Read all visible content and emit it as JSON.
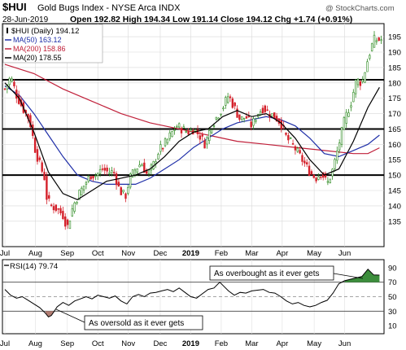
{
  "header": {
    "symbol": "$HUI",
    "name": "Gold Bugs Index - NYSE Arca  INDX",
    "watermark": "@ StockCharts.com",
    "date": "28-Jun-2019",
    "quote": "Open 192.82  High 194.34  Low 191.14  Close 194.12  Chg +1.74 (+0.91%)",
    "quote_color": "#000000",
    "change_color": "#2e8b22"
  },
  "legend": [
    {
      "label": "$HUI (Daily) 194.12",
      "color": "#000000",
      "icon": "candlestick-icon"
    },
    {
      "label": "MA(50) 163.12",
      "color": "#1f2fa8"
    },
    {
      "label": "MA(200) 158.86",
      "color": "#c0203a"
    },
    {
      "label": "MA(20) 178.55",
      "color": "#000000"
    }
  ],
  "rsi_legend": {
    "label": "RSI(14) 79.74",
    "color": "#000000"
  },
  "annotations": {
    "overbought": "As overbought as it ever gets",
    "oversold": "As oversold as it ever gets"
  },
  "colors": {
    "up": "#2e8b22",
    "down": "#d4202a",
    "ma50": "#1f2fa8",
    "ma200": "#c0203a",
    "ma20": "#000000",
    "rsi_fill_ob": "#3c8d3c",
    "rsi_fill_os": "#b27d73"
  },
  "chart_data": [
    {
      "type": "candlestick",
      "title": "$HUI Gold Bugs Index - NYSE Arca INDX",
      "ylim": [
        127,
        199
      ],
      "y_ticks": [
        135,
        140,
        145,
        150,
        155,
        160,
        165,
        170,
        175,
        180,
        185,
        190,
        195
      ],
      "x_tick_labels": [
        "Jul",
        "Aug",
        "Sep",
        "Oct",
        "Nov",
        "Dec",
        "2019",
        "Feb",
        "Mar",
        "Apr",
        "May",
        "Jun"
      ],
      "x_range": [
        0,
        260
      ],
      "x_tick_days": [
        0,
        21,
        43,
        64,
        85,
        107,
        128,
        149,
        170,
        191,
        213,
        234
      ],
      "horizontal_lines": [
        150,
        165,
        181
      ],
      "close_path": [
        [
          0,
          178
        ],
        [
          4,
          182
        ],
        [
          8,
          176
        ],
        [
          12,
          172
        ],
        [
          17,
          168
        ],
        [
          21,
          158
        ],
        [
          25,
          152
        ],
        [
          27,
          150
        ],
        [
          29,
          142
        ],
        [
          32,
          140
        ],
        [
          36,
          139
        ],
        [
          40,
          137
        ],
        [
          43,
          133
        ],
        [
          47,
          140
        ],
        [
          51,
          144
        ],
        [
          55,
          147
        ],
        [
          59,
          150
        ],
        [
          63,
          150
        ],
        [
          67,
          152
        ],
        [
          71,
          151
        ],
        [
          75,
          151
        ],
        [
          79,
          145
        ],
        [
          83,
          143
        ],
        [
          86,
          149
        ],
        [
          90,
          152
        ],
        [
          94,
          154
        ],
        [
          98,
          150
        ],
        [
          102,
          153
        ],
        [
          106,
          158
        ],
        [
          110,
          160
        ],
        [
          114,
          163
        ],
        [
          118,
          166
        ],
        [
          122,
          165
        ],
        [
          126,
          164
        ],
        [
          130,
          165
        ],
        [
          134,
          163
        ],
        [
          138,
          160
        ],
        [
          142,
          166
        ],
        [
          146,
          169
        ],
        [
          150,
          172
        ],
        [
          154,
          176
        ],
        [
          158,
          172
        ],
        [
          162,
          168
        ],
        [
          166,
          169
        ],
        [
          170,
          166
        ],
        [
          174,
          170
        ],
        [
          178,
          172
        ],
        [
          182,
          170
        ],
        [
          186,
          169
        ],
        [
          190,
          167
        ],
        [
          194,
          162
        ],
        [
          198,
          160
        ],
        [
          202,
          157
        ],
        [
          206,
          154
        ],
        [
          210,
          151
        ],
        [
          214,
          149
        ],
        [
          218,
          151
        ],
        [
          222,
          147
        ],
        [
          226,
          152
        ],
        [
          230,
          160
        ],
        [
          234,
          168
        ],
        [
          238,
          173
        ],
        [
          242,
          181
        ],
        [
          246,
          180
        ],
        [
          250,
          188
        ],
        [
          254,
          194
        ],
        [
          258,
          194
        ]
      ],
      "ma50_path": [
        [
          0,
          179
        ],
        [
          10,
          176
        ],
        [
          20,
          170
        ],
        [
          30,
          163
        ],
        [
          40,
          156
        ],
        [
          50,
          150
        ],
        [
          60,
          148
        ],
        [
          70,
          147
        ],
        [
          80,
          147
        ],
        [
          90,
          147
        ],
        [
          100,
          149
        ],
        [
          110,
          152
        ],
        [
          120,
          155
        ],
        [
          130,
          159
        ],
        [
          140,
          162
        ],
        [
          150,
          165
        ],
        [
          160,
          167
        ],
        [
          170,
          168
        ],
        [
          180,
          169
        ],
        [
          190,
          168
        ],
        [
          200,
          166
        ],
        [
          210,
          162
        ],
        [
          220,
          157
        ],
        [
          230,
          156
        ],
        [
          240,
          158
        ],
        [
          250,
          160
        ],
        [
          258,
          163
        ]
      ],
      "ma200_path": [
        [
          0,
          186
        ],
        [
          20,
          183
        ],
        [
          40,
          178
        ],
        [
          60,
          174
        ],
        [
          80,
          170
        ],
        [
          100,
          167
        ],
        [
          120,
          165
        ],
        [
          140,
          163
        ],
        [
          160,
          161
        ],
        [
          180,
          160
        ],
        [
          200,
          159
        ],
        [
          220,
          158
        ],
        [
          240,
          157
        ],
        [
          250,
          157
        ],
        [
          258,
          158.86
        ]
      ],
      "ma20_path": [
        [
          0,
          180
        ],
        [
          10,
          175
        ],
        [
          20,
          164
        ],
        [
          30,
          151
        ],
        [
          40,
          144
        ],
        [
          50,
          142
        ],
        [
          60,
          145
        ],
        [
          70,
          148
        ],
        [
          80,
          149
        ],
        [
          90,
          150
        ],
        [
          100,
          152
        ],
        [
          110,
          156
        ],
        [
          120,
          161
        ],
        [
          130,
          164
        ],
        [
          140,
          165
        ],
        [
          150,
          169
        ],
        [
          160,
          171
        ],
        [
          170,
          169
        ],
        [
          180,
          170
        ],
        [
          190,
          167
        ],
        [
          200,
          162
        ],
        [
          210,
          155
        ],
        [
          220,
          150
        ],
        [
          230,
          152
        ],
        [
          240,
          161
        ],
        [
          250,
          172
        ],
        [
          258,
          178.55
        ]
      ],
      "series": [
        {
          "name": "MA(50)",
          "last": 163.12
        },
        {
          "name": "MA(200)",
          "last": 158.86
        },
        {
          "name": "MA(20)",
          "last": 178.55
        }
      ]
    },
    {
      "type": "line",
      "title": "RSI(14)",
      "ylim": [
        0,
        100
      ],
      "y_ticks": [
        10,
        30,
        50,
        70,
        90
      ],
      "reference_lines": [
        30,
        50,
        70
      ],
      "x_tick_labels": [
        "Jul",
        "Aug",
        "Sep",
        "Oct",
        "Nov",
        "Dec",
        "2019",
        "Feb",
        "Mar",
        "Apr",
        "May",
        "Jun"
      ],
      "values": [
        [
          0,
          60
        ],
        [
          4,
          52
        ],
        [
          8,
          48
        ],
        [
          12,
          50
        ],
        [
          16,
          45
        ],
        [
          20,
          40
        ],
        [
          24,
          35
        ],
        [
          26,
          31
        ],
        [
          28,
          27
        ],
        [
          30,
          22
        ],
        [
          32,
          24
        ],
        [
          34,
          30
        ],
        [
          36,
          36
        ],
        [
          40,
          42
        ],
        [
          44,
          38
        ],
        [
          48,
          44
        ],
        [
          52,
          47
        ],
        [
          56,
          50
        ],
        [
          60,
          47
        ],
        [
          64,
          52
        ],
        [
          68,
          50
        ],
        [
          72,
          48
        ],
        [
          76,
          51
        ],
        [
          80,
          44
        ],
        [
          84,
          40
        ],
        [
          88,
          50
        ],
        [
          92,
          53
        ],
        [
          96,
          50
        ],
        [
          100,
          55
        ],
        [
          104,
          56
        ],
        [
          108,
          58
        ],
        [
          112,
          60
        ],
        [
          116,
          57
        ],
        [
          120,
          62
        ],
        [
          124,
          56
        ],
        [
          128,
          50
        ],
        [
          132,
          48
        ],
        [
          136,
          54
        ],
        [
          140,
          60
        ],
        [
          144,
          62
        ],
        [
          148,
          70
        ],
        [
          150,
          66
        ],
        [
          154,
          58
        ],
        [
          158,
          52
        ],
        [
          162,
          56
        ],
        [
          166,
          55
        ],
        [
          170,
          58
        ],
        [
          174,
          59
        ],
        [
          178,
          60
        ],
        [
          182,
          56
        ],
        [
          186,
          55
        ],
        [
          190,
          50
        ],
        [
          194,
          44
        ],
        [
          198,
          40
        ],
        [
          202,
          42
        ],
        [
          206,
          38
        ],
        [
          210,
          36
        ],
        [
          214,
          38
        ],
        [
          218,
          42
        ],
        [
          222,
          45
        ],
        [
          226,
          55
        ],
        [
          230,
          68
        ],
        [
          234,
          72
        ],
        [
          238,
          74
        ],
        [
          242,
          76
        ],
        [
          246,
          78
        ],
        [
          250,
          88
        ],
        [
          254,
          80
        ],
        [
          258,
          79.74
        ]
      ]
    }
  ]
}
